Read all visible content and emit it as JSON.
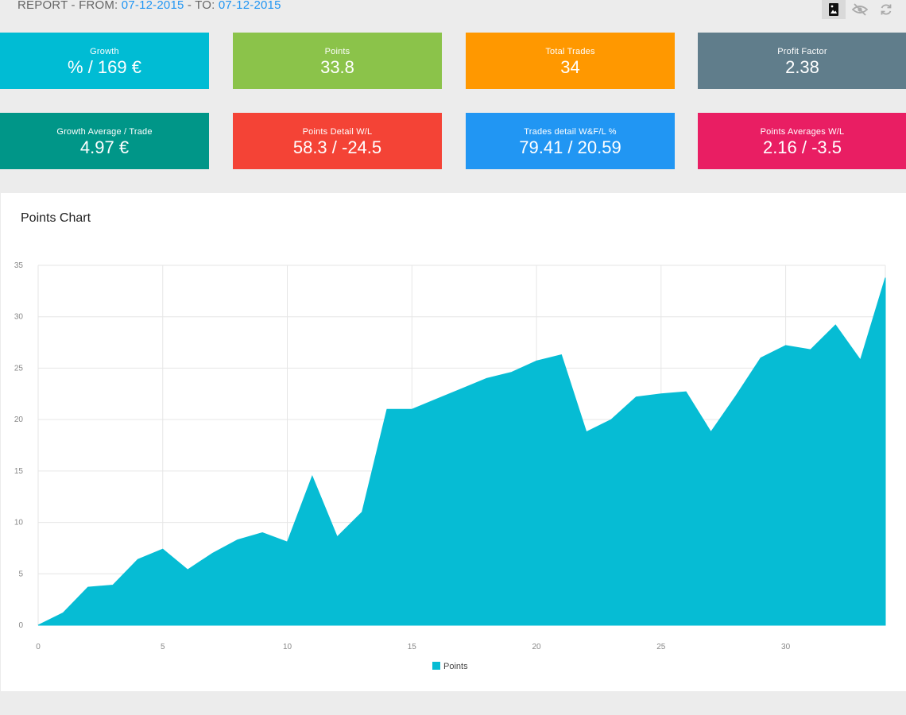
{
  "header": {
    "prefix": "REPORT - FROM: ",
    "from_date": "07-12-2015",
    "to_prefix": " - TO: ",
    "to_date": "07-12-2015",
    "icons": [
      "image-icon",
      "eye-off-icon",
      "refresh-icon"
    ]
  },
  "tiles": [
    {
      "label": "Growth",
      "value": "% / 169 €",
      "color": "#00bcd4"
    },
    {
      "label": "Points",
      "value": "33.8",
      "color": "#8bc34a"
    },
    {
      "label": "Total Trades",
      "value": "34",
      "color": "#ff9800"
    },
    {
      "label": "Profit Factor",
      "value": "2.38",
      "color": "#607d8b"
    },
    {
      "label": "Growth Average / Trade",
      "value": "4.97 €",
      "color": "#009688"
    },
    {
      "label": "Points Detail W/L",
      "value": "58.3 / -24.5",
      "color": "#f44336"
    },
    {
      "label": "Trades detail W&F/L %",
      "value": "79.41 / 20.59",
      "color": "#2196f3"
    },
    {
      "label": "Points Averages W/L",
      "value": "2.16 / -3.5",
      "color": "#e91e63"
    }
  ],
  "chart": {
    "title": "Points Chart"
  },
  "chart_data": {
    "type": "area",
    "title": "Points Chart",
    "xlabel": "",
    "ylabel": "",
    "xlim": [
      0,
      34
    ],
    "ylim": [
      0,
      35
    ],
    "xticks": [
      0,
      5,
      10,
      15,
      20,
      25,
      30
    ],
    "yticks": [
      0,
      5,
      10,
      15,
      20,
      25,
      30,
      35
    ],
    "grid": true,
    "legend": "bottom",
    "color": "#06bcd4",
    "series": [
      {
        "name": "Points",
        "x": [
          0,
          1,
          2,
          3,
          4,
          5,
          6,
          7,
          8,
          9,
          10,
          11,
          12,
          13,
          14,
          15,
          16,
          17,
          18,
          19,
          20,
          21,
          22,
          23,
          24,
          25,
          26,
          27,
          28,
          29,
          30,
          31,
          32,
          33,
          34
        ],
        "values": [
          0,
          1.2,
          3.7,
          3.9,
          6.4,
          7.4,
          5.4,
          7.0,
          8.3,
          9.0,
          8.1,
          14.5,
          8.6,
          11.0,
          21.0,
          21.0,
          22.0,
          23.0,
          24.0,
          24.6,
          25.7,
          26.3,
          18.8,
          20.0,
          22.2,
          22.5,
          22.7,
          18.8,
          22.3,
          26.0,
          27.2,
          26.8,
          29.2,
          25.8,
          33.8
        ]
      }
    ]
  }
}
